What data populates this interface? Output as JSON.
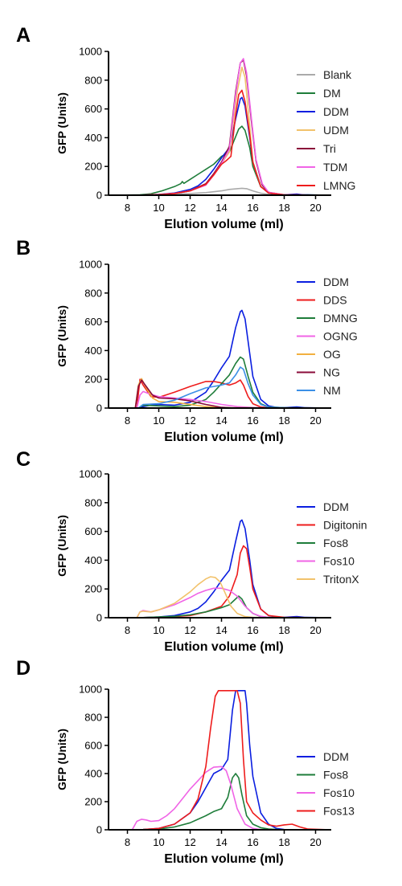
{
  "chart_data": [
    {
      "panel": "A",
      "type": "line",
      "xlabel": "Elution volume (ml)",
      "ylabel": "GFP (Units)",
      "xlim": [
        7,
        21
      ],
      "ylim": [
        0,
        1000
      ],
      "xticks": [
        8,
        10,
        12,
        14,
        16,
        18,
        20
      ],
      "yticks": [
        0,
        200,
        400,
        600,
        800,
        1000
      ],
      "legend_position": "right",
      "series": [
        {
          "name": "Blank",
          "color": "#aaaaaa",
          "x": [
            7,
            9,
            10,
            11,
            12,
            13,
            14,
            14.5,
            15,
            15.3,
            15.6,
            16,
            16.5,
            17,
            18,
            19,
            21
          ],
          "y": [
            0,
            2,
            5,
            8,
            12,
            18,
            30,
            40,
            45,
            48,
            45,
            30,
            14,
            6,
            3,
            2,
            0
          ]
        },
        {
          "name": "DM",
          "color": "#1e7d3a",
          "x": [
            7,
            8.8,
            9.5,
            10.2,
            11,
            11.4,
            11.5,
            11.6,
            12,
            12.5,
            13,
            13.5,
            14,
            14.5,
            14.8,
            15.1,
            15.3,
            15.5,
            15.8,
            16,
            16.5,
            17,
            17.5,
            18,
            19,
            21
          ],
          "y": [
            0,
            2,
            10,
            30,
            60,
            80,
            95,
            82,
            110,
            145,
            180,
            215,
            270,
            300,
            380,
            460,
            480,
            450,
            330,
            200,
            60,
            20,
            5,
            2,
            3,
            0
          ]
        },
        {
          "name": "DDM",
          "color": "#0a1ee0",
          "x": [
            7,
            9,
            10,
            11,
            12,
            12.5,
            13,
            13.5,
            14,
            14.5,
            14.9,
            15.2,
            15.3,
            15.5,
            15.8,
            16,
            16.5,
            17,
            17.5,
            18,
            18.8,
            19.2,
            21
          ],
          "y": [
            0,
            1,
            5,
            15,
            40,
            65,
            110,
            180,
            260,
            330,
            530,
            670,
            680,
            620,
            400,
            230,
            60,
            15,
            5,
            3,
            8,
            3,
            0
          ]
        },
        {
          "name": "UDM",
          "color": "#f2c26b",
          "x": [
            7,
            9,
            10,
            11,
            12,
            13,
            13.5,
            14,
            14.5,
            15,
            15.3,
            15.5,
            15.8,
            16,
            16.5,
            17,
            18,
            21
          ],
          "y": [
            0,
            1,
            4,
            12,
            30,
            80,
            140,
            220,
            300,
            720,
            890,
            820,
            480,
            230,
            60,
            15,
            2,
            0
          ]
        },
        {
          "name": "Tri",
          "color": "#8a0b3a",
          "x": [
            7,
            9,
            10,
            11,
            12,
            13,
            13.5,
            14,
            14.5,
            14.9,
            15.2,
            15.4,
            15.6,
            15.9,
            16.2,
            16.6,
            17,
            18,
            21
          ],
          "y": [
            0,
            1,
            4,
            12,
            30,
            80,
            150,
            230,
            340,
            720,
            920,
            940,
            830,
            520,
            240,
            70,
            20,
            2,
            0
          ]
        },
        {
          "name": "TDM",
          "color": "#f064e6",
          "x": [
            7,
            9,
            10,
            11,
            12,
            13,
            13.5,
            14,
            14.5,
            14.9,
            15.2,
            15.4,
            15.6,
            15.9,
            16.2,
            16.6,
            17,
            18,
            21
          ],
          "y": [
            0,
            1,
            4,
            12,
            30,
            70,
            140,
            220,
            320,
            700,
            920,
            950,
            850,
            540,
            250,
            80,
            20,
            2,
            0
          ]
        },
        {
          "name": "LMNG",
          "color": "#ee1c1c",
          "x": [
            7,
            9,
            10,
            11,
            12,
            13,
            13.5,
            14,
            14.3,
            14.6,
            14.9,
            15.1,
            15.3,
            15.5,
            15.8,
            16,
            16.5,
            17,
            18,
            21
          ],
          "y": [
            0,
            1,
            4,
            12,
            30,
            75,
            140,
            215,
            240,
            270,
            560,
            700,
            730,
            650,
            420,
            230,
            60,
            15,
            2,
            0
          ]
        }
      ]
    },
    {
      "panel": "B",
      "type": "line",
      "xlabel": "Elution volume (ml)",
      "ylabel": "GFP (Units)",
      "xlim": [
        7,
        21
      ],
      "ylim": [
        0,
        1000
      ],
      "xticks": [
        8,
        10,
        12,
        14,
        16,
        18,
        20
      ],
      "yticks": [
        0,
        200,
        400,
        600,
        800,
        1000
      ],
      "legend_position": "right",
      "series": [
        {
          "name": "DDM",
          "color": "#0a1ee0",
          "x": [
            7,
            8.7,
            9,
            9.5,
            10,
            11,
            12,
            13,
            13.5,
            14,
            14.5,
            14.9,
            15.2,
            15.3,
            15.5,
            15.8,
            16,
            16.5,
            17,
            17.5,
            18,
            18.8,
            19.3,
            21
          ],
          "y": [
            0,
            0,
            10,
            20,
            25,
            20,
            40,
            110,
            190,
            280,
            360,
            560,
            670,
            680,
            620,
            380,
            220,
            60,
            15,
            5,
            3,
            8,
            3,
            0
          ]
        },
        {
          "name": "DDS",
          "color": "#ee1c1c",
          "x": [
            7,
            8.6,
            8.8,
            9,
            9.5,
            10,
            11,
            12,
            13,
            13.5,
            14,
            14.5,
            14.9,
            15.2,
            15.4,
            15.7,
            16,
            16.5,
            17,
            18,
            21
          ],
          "y": [
            0,
            0,
            200,
            160,
            80,
            75,
            110,
            150,
            185,
            185,
            175,
            160,
            175,
            195,
            160,
            80,
            30,
            8,
            2,
            0,
            0
          ]
        },
        {
          "name": "DMNG",
          "color": "#1e7d3a",
          "x": [
            7,
            8.7,
            9,
            10,
            11,
            12,
            13,
            13.5,
            14,
            14.5,
            14.9,
            15.2,
            15.4,
            15.7,
            16,
            16.5,
            17,
            18,
            21
          ],
          "y": [
            0,
            0,
            20,
            15,
            10,
            20,
            60,
            110,
            170,
            230,
            310,
            355,
            340,
            220,
            110,
            30,
            8,
            2,
            0
          ]
        },
        {
          "name": "OGNG",
          "color": "#f064e6",
          "x": [
            7,
            8.6,
            8.8,
            9,
            9.5,
            10,
            11,
            12,
            13,
            14,
            15,
            16,
            17,
            21
          ],
          "y": [
            0,
            0,
            90,
            115,
            95,
            80,
            70,
            60,
            45,
            25,
            10,
            4,
            1,
            0
          ]
        },
        {
          "name": "OG",
          "color": "#f2b040",
          "x": [
            7,
            8.5,
            8.7,
            8.9,
            9.2,
            9.6,
            10,
            11,
            12,
            13,
            14,
            21
          ],
          "y": [
            0,
            0,
            160,
            205,
            140,
            70,
            45,
            40,
            25,
            10,
            3,
            0
          ]
        },
        {
          "name": "NG",
          "color": "#8a0b3a",
          "x": [
            7,
            8.5,
            8.7,
            8.9,
            9.2,
            9.6,
            10,
            11,
            12,
            13,
            14,
            15,
            21
          ],
          "y": [
            0,
            0,
            150,
            195,
            150,
            90,
            70,
            65,
            50,
            25,
            5,
            0,
            0
          ]
        },
        {
          "name": "NM",
          "color": "#3b8fe6",
          "x": [
            7,
            8.7,
            9,
            10,
            11,
            12,
            13,
            13.5,
            14,
            14.5,
            14.9,
            15.2,
            15.4,
            15.7,
            16,
            16.5,
            17,
            18,
            21
          ],
          "y": [
            0,
            0,
            25,
            30,
            55,
            100,
            140,
            150,
            160,
            175,
            230,
            285,
            270,
            170,
            90,
            25,
            6,
            2,
            0
          ]
        }
      ]
    },
    {
      "panel": "C",
      "type": "line",
      "xlabel": "Elution volume (ml)",
      "ylabel": "GFP (Units)",
      "xlim": [
        7,
        21
      ],
      "ylim": [
        0,
        1000
      ],
      "xticks": [
        8,
        10,
        12,
        14,
        16,
        18,
        20
      ],
      "yticks": [
        0,
        200,
        400,
        600,
        800,
        1000
      ],
      "legend_position": "right",
      "series": [
        {
          "name": "DDM",
          "color": "#0a1ee0",
          "x": [
            7,
            9,
            10,
            11,
            12,
            12.5,
            13,
            13.5,
            14,
            14.5,
            14.9,
            15.2,
            15.3,
            15.5,
            15.8,
            16,
            16.5,
            17,
            17.5,
            18,
            18.8,
            19.3,
            21
          ],
          "y": [
            0,
            1,
            5,
            15,
            40,
            65,
            110,
            180,
            260,
            330,
            530,
            670,
            680,
            620,
            400,
            230,
            60,
            15,
            5,
            3,
            8,
            3,
            0
          ]
        },
        {
          "name": "Digitonin",
          "color": "#ee1c1c",
          "x": [
            7,
            9,
            10,
            11,
            12,
            13,
            14,
            14.5,
            15,
            15.2,
            15.4,
            15.6,
            15.8,
            16,
            16.5,
            17,
            18,
            21
          ],
          "y": [
            0,
            1,
            3,
            8,
            15,
            40,
            80,
            150,
            300,
            450,
            500,
            480,
            350,
            200,
            60,
            15,
            2,
            0
          ]
        },
        {
          "name": "Fos8",
          "color": "#1e7d3a",
          "x": [
            7,
            9,
            10,
            11,
            12,
            13,
            14,
            14.5,
            14.8,
            15.1,
            15.3,
            15.6,
            16,
            16.5,
            17,
            18,
            21
          ],
          "y": [
            0,
            1,
            5,
            10,
            20,
            40,
            70,
            90,
            120,
            150,
            130,
            70,
            30,
            8,
            2,
            0,
            0
          ]
        },
        {
          "name": "Fos10",
          "color": "#f064e6",
          "x": [
            7,
            8.6,
            8.8,
            9,
            9.5,
            10,
            11,
            12,
            12.5,
            13,
            13.5,
            14,
            14.5,
            15,
            15.5,
            16,
            16.5,
            17,
            18,
            21
          ],
          "y": [
            0,
            0,
            40,
            50,
            40,
            55,
            90,
            140,
            170,
            190,
            205,
            205,
            190,
            150,
            80,
            30,
            10,
            3,
            0,
            0
          ]
        },
        {
          "name": "TritonX",
          "color": "#f2c26b",
          "x": [
            7,
            8.6,
            8.8,
            9,
            9.5,
            10,
            11,
            12,
            12.5,
            13,
            13.3,
            13.6,
            13.9,
            14.2,
            14.6,
            15,
            15.5,
            16,
            17,
            21
          ],
          "y": [
            0,
            0,
            40,
            45,
            40,
            55,
            100,
            180,
            230,
            270,
            285,
            280,
            250,
            180,
            80,
            30,
            8,
            2,
            0,
            0
          ]
        }
      ]
    },
    {
      "panel": "D",
      "type": "line",
      "xlabel": "Elution volume (ml)",
      "ylabel": "GFP (Units)",
      "xlim": [
        7,
        21
      ],
      "ylim": [
        0,
        1000
      ],
      "xticks": [
        8,
        10,
        12,
        14,
        16,
        18,
        20
      ],
      "yticks": [
        0,
        200,
        400,
        600,
        800,
        1000
      ],
      "legend_position": "right",
      "series": [
        {
          "name": "DDM",
          "color": "#0a1ee0",
          "x": [
            7,
            9,
            10,
            11,
            12,
            12.5,
            13,
            13.5,
            14,
            14.4,
            14.7,
            14.9,
            15,
            15.5,
            15.6,
            15.8,
            16,
            16.5,
            17,
            17.5,
            18,
            21
          ],
          "y": [
            0,
            2,
            10,
            40,
            120,
            200,
            300,
            400,
            430,
            500,
            850,
            990,
            990,
            990,
            900,
            600,
            380,
            120,
            40,
            10,
            2,
            0
          ]
        },
        {
          "name": "Fos8",
          "color": "#1e7d3a",
          "x": [
            7,
            9,
            10,
            11,
            12,
            12.5,
            13,
            13.5,
            14,
            14.4,
            14.7,
            14.9,
            15.1,
            15.3,
            15.6,
            16,
            16.5,
            17,
            18,
            21
          ],
          "y": [
            0,
            2,
            5,
            20,
            50,
            75,
            100,
            130,
            150,
            230,
            370,
            400,
            370,
            250,
            100,
            40,
            15,
            5,
            0,
            0
          ]
        },
        {
          "name": "Fos10",
          "color": "#f064e6",
          "x": [
            7,
            8.3,
            8.6,
            8.9,
            9.2,
            9.5,
            10,
            10.5,
            11,
            11.5,
            12,
            12.5,
            13,
            13.5,
            14,
            14.3,
            14.6,
            15,
            15.5,
            16,
            16.5,
            17,
            18,
            21
          ],
          "y": [
            0,
            0,
            60,
            75,
            70,
            60,
            65,
            100,
            150,
            220,
            290,
            350,
            410,
            445,
            450,
            420,
            320,
            150,
            40,
            10,
            2,
            0,
            0,
            0
          ]
        },
        {
          "name": "Fos13",
          "color": "#ee1c1c",
          "x": [
            7,
            9,
            10,
            11,
            12,
            12.5,
            13,
            13.3,
            13.6,
            13.8,
            14,
            15,
            15.2,
            15.4,
            15.6,
            16,
            16.5,
            17,
            17.5,
            18,
            18.5,
            19,
            19.5,
            21
          ],
          "y": [
            0,
            2,
            10,
            40,
            120,
            220,
            450,
            720,
            950,
            990,
            990,
            990,
            900,
            500,
            200,
            120,
            70,
            35,
            25,
            35,
            40,
            20,
            5,
            0
          ]
        }
      ]
    }
  ]
}
